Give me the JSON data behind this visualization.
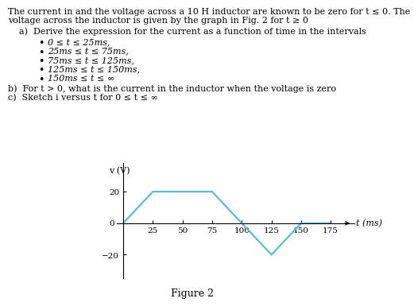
{
  "line1": "The current in and the voltage across a 10 H inductor are known to be zero for t ≤ 0. The",
  "line2": "voltage across the inductor is given by the graph in Fig. 2 for t ≥ 0",
  "part_a": "a)  Derive the expression for the current as a function of time in the intervals",
  "bullets": [
    "0 ≤ t ≤ 25ms,",
    "25ms ≤ t ≤ 75ms,",
    "75ms ≤ t ≤ 125ms,",
    "125ms ≤ t ≤ 150ms,",
    "150ms ≤ t ≤ ∞"
  ],
  "part_b": "b)  For t > 0, what is the current in the inductor when the voltage is zero",
  "part_c": "c)  Sketch i versus t for 0 ≤ t ≤ ∞",
  "graph_x": [
    0,
    25,
    75,
    100,
    125,
    150,
    175
  ],
  "graph_y": [
    0,
    20,
    20,
    0,
    -20,
    0,
    0
  ],
  "graph_xlabel": "t (ms)",
  "graph_ylabel": "v (V)",
  "graph_xticks": [
    25,
    50,
    75,
    100,
    125,
    150,
    175
  ],
  "graph_xlim": [
    -5,
    195
  ],
  "graph_ylim": [
    -35,
    38
  ],
  "line_color": "#5bbcd4",
  "figure_label": "Figure 2",
  "bg_color": "#ffffff",
  "bold_items": [
    "t > 0",
    "t"
  ]
}
